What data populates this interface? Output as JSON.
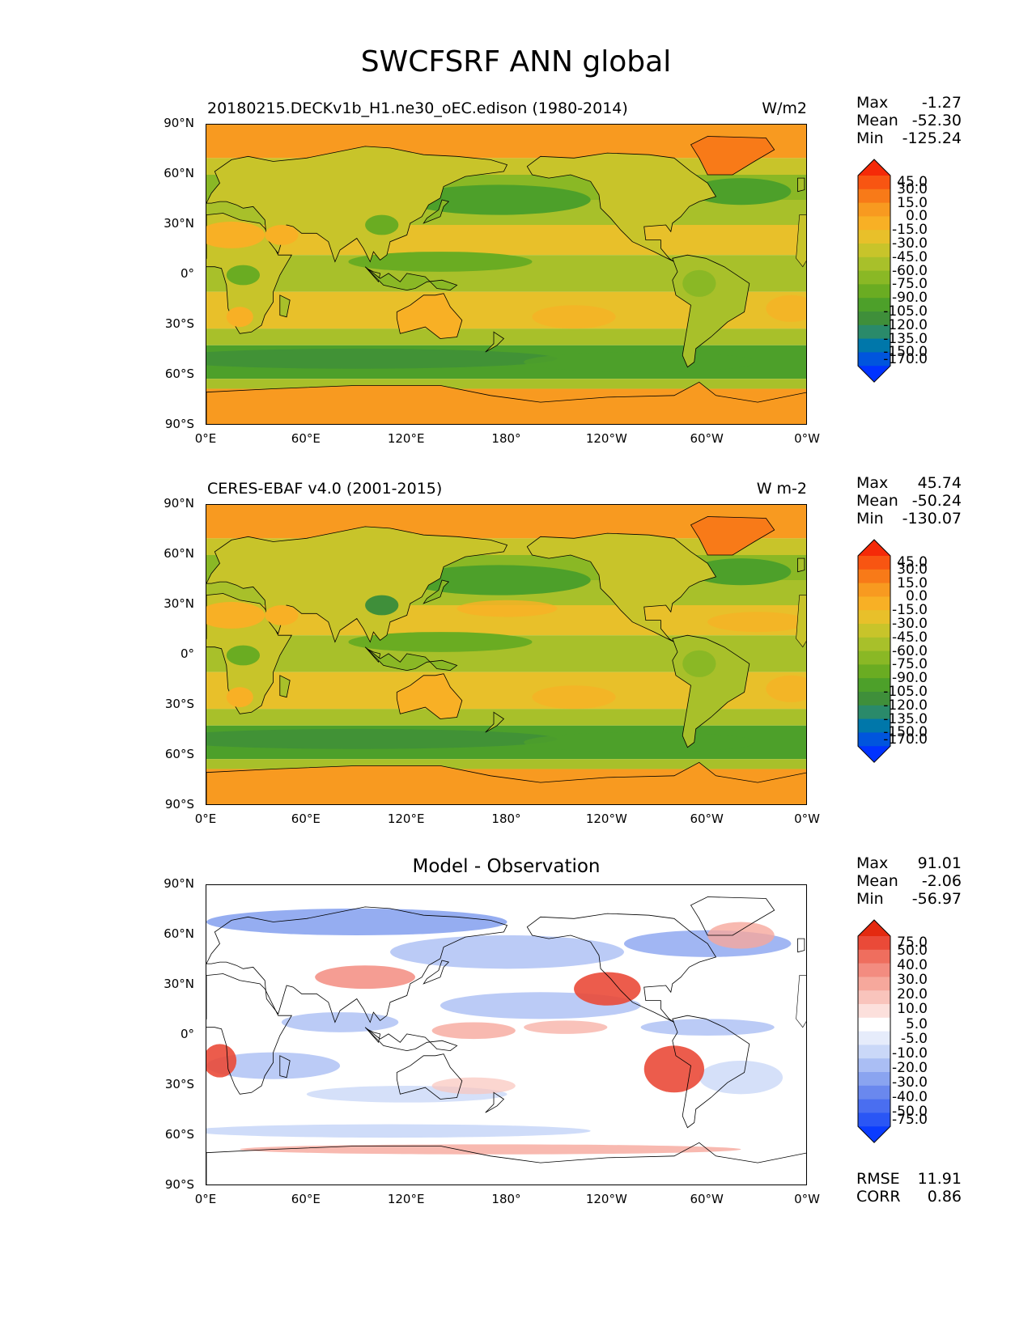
{
  "title": "SWCFSRF ANN global",
  "lat_ticks": [
    "90°N",
    "60°N",
    "30°N",
    "0°",
    "30°S",
    "60°S",
    "90°S"
  ],
  "lon_ticks": [
    "0°E",
    "60°E",
    "120°E",
    "180°",
    "120°W",
    "60°W",
    "0°W"
  ],
  "colors": {
    "abs_levels": [
      "#0033ff",
      "#0055dd",
      "#0077aa",
      "#2a8a6a",
      "#3f8f3a",
      "#4da02a",
      "#6aac22",
      "#8ab825",
      "#a8c02a",
      "#c8c42a",
      "#e8c02a",
      "#f8b025",
      "#f89a20",
      "#f87a18",
      "#f85512",
      "#f52a08"
    ],
    "diff_levels": [
      "#0a3cff",
      "#2a56f5",
      "#4a6ef0",
      "#6a88ee",
      "#8aa4f0",
      "#aabef4",
      "#cad8f8",
      "#e6ecfb",
      "#ffffff",
      "#fce0dc",
      "#f9c4bc",
      "#f6a89c",
      "#f38c80",
      "#ef6e5e",
      "#ea4a38",
      "#e42a10"
    ],
    "coastline": "#000000"
  },
  "panels": [
    {
      "title": "20180215.DECKv1b_H1.ne30_oEC.edison (1980-2014)",
      "units": "W/m2",
      "stats": {
        "max_label": "Max",
        "max": "-1.27",
        "mean_label": "Mean",
        "mean": "-52.30",
        "min_label": "Min",
        "min": "-125.24"
      },
      "colorbar_ticks": [
        "45.0",
        "30.0",
        "15.0",
        "0.0",
        "-15.0",
        "-30.0",
        "-45.0",
        "-60.0",
        "-75.0",
        "-90.0",
        "-105.0",
        "-120.0",
        "-135.0",
        "-150.0",
        "-170.0"
      ]
    },
    {
      "title": "CERES-EBAF v4.0 (2001-2015)",
      "units": "W m-2",
      "stats": {
        "max_label": "Max",
        "max": "45.74",
        "mean_label": "Mean",
        "mean": "-50.24",
        "min_label": "Min",
        "min": "-130.07"
      },
      "colorbar_ticks": [
        "45.0",
        "30.0",
        "15.0",
        "0.0",
        "-15.0",
        "-30.0",
        "-45.0",
        "-60.0",
        "-75.0",
        "-90.0",
        "-105.0",
        "-120.0",
        "-135.0",
        "-150.0",
        "-170.0"
      ]
    },
    {
      "title": "Model - Observation",
      "units": "",
      "stats": {
        "max_label": "Max",
        "max": "91.01",
        "mean_label": "Mean",
        "mean": "-2.06",
        "min_label": "Min",
        "min": "-56.97"
      },
      "colorbar_ticks": [
        "75.0",
        "50.0",
        "40.0",
        "30.0",
        "20.0",
        "10.0",
        "5.0",
        "-5.0",
        "-10.0",
        "-20.0",
        "-30.0",
        "-40.0",
        "-50.0",
        "-75.0"
      ],
      "footer": {
        "rmse_label": "RMSE",
        "rmse": "11.91",
        "corr_label": "CORR",
        "corr": "0.86"
      }
    }
  ]
}
